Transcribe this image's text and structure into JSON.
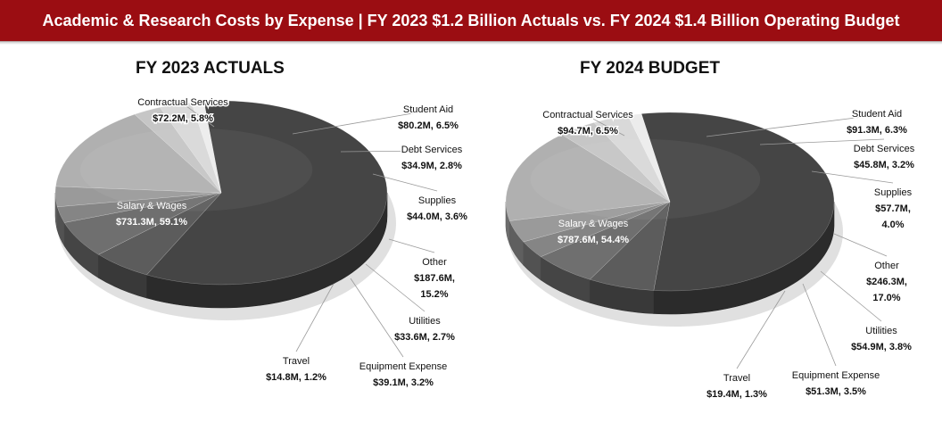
{
  "banner": {
    "title": "Academic & Research Costs by Expense | FY 2023 $1.2 Billion  Actuals vs. FY 2024 $1.4 Billion  Operating Budget"
  },
  "colors": {
    "banner": "#9b0d12",
    "salary": "#454545",
    "contractual": "#5c5c5c",
    "student_aid": "#6f6f6f",
    "debt": "#858585",
    "supplies": "#9a9a9a",
    "other": "#b0b0b0",
    "utilities": "#c6c6c6",
    "equipment": "#d9d9d9",
    "travel": "#ececec"
  },
  "chart_data": [
    {
      "type": "pie",
      "style": "3d",
      "title": "FY 2023 ACTUALS",
      "units": "$M",
      "slices": [
        {
          "label": "Salary & Wages",
          "value": 731.3,
          "value_text": "$731.3M, 59.1%",
          "percent": 59.1
        },
        {
          "label": "Contractual Services",
          "value": 72.2,
          "value_text": "$72.2M, 5.8%",
          "percent": 5.8
        },
        {
          "label": "Student Aid",
          "value": 80.2,
          "value_text": "$80.2M, 6.5%",
          "percent": 6.5
        },
        {
          "label": "Debt Services",
          "value": 34.9,
          "value_text": "$34.9M, 2.8%",
          "percent": 2.8
        },
        {
          "label": "Supplies",
          "value": 44.0,
          "value_text": "$44.0M, 3.6%",
          "percent": 3.6
        },
        {
          "label": "Other",
          "value": 187.6,
          "value_text": "$187.6M,",
          "value_text2": "15.2%",
          "percent": 15.2
        },
        {
          "label": "Utilities",
          "value": 33.6,
          "value_text": "$33.6M, 2.7%",
          "percent": 2.7
        },
        {
          "label": "Equipment Expense",
          "value": 39.1,
          "value_text": "$39.1M, 3.2%",
          "percent": 3.2
        },
        {
          "label": "Travel",
          "value": 14.8,
          "value_text": "$14.8M, 1.2%",
          "percent": 1.2
        }
      ]
    },
    {
      "type": "pie",
      "style": "3d",
      "title": "FY 2024 BUDGET",
      "units": "$M",
      "slices": [
        {
          "label": "Salary & Wages",
          "value": 787.6,
          "value_text": "$787.6M, 54.4%",
          "percent": 54.4
        },
        {
          "label": "Contractual Services",
          "value": 94.7,
          "value_text": "$94.7M, 6.5%",
          "percent": 6.5
        },
        {
          "label": "Student Aid",
          "value": 91.3,
          "value_text": "$91.3M, 6.3%",
          "percent": 6.3
        },
        {
          "label": "Debt Services",
          "value": 45.8,
          "value_text": "$45.8M, 3.2%",
          "percent": 3.2
        },
        {
          "label": "Supplies",
          "value": 57.7,
          "value_text": "$57.7M,",
          "value_text2": "4.0%",
          "percent": 4.0
        },
        {
          "label": "Other",
          "value": 246.3,
          "value_text": "$246.3M,",
          "value_text2": "17.0%",
          "percent": 17.0
        },
        {
          "label": "Utilities",
          "value": 54.9,
          "value_text": "$54.9M, 3.8%",
          "percent": 3.8
        },
        {
          "label": "Equipment Expense",
          "value": 51.3,
          "value_text": "$51.3M, 3.5%",
          "percent": 3.5
        },
        {
          "label": "Travel",
          "value": 19.4,
          "value_text": "$19.4M, 1.3%",
          "percent": 1.3
        }
      ]
    }
  ]
}
